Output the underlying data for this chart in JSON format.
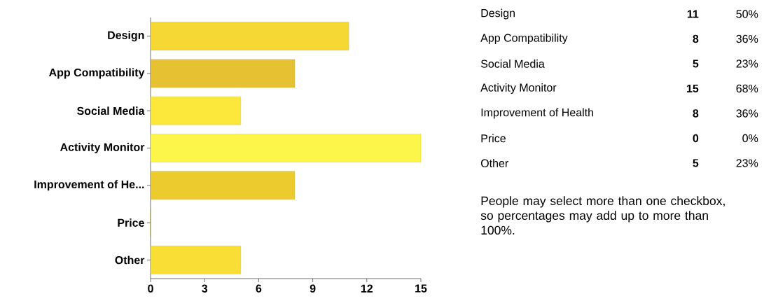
{
  "chart_data": [
    {
      "type": "bar",
      "orientation": "horizontal",
      "categories": [
        "Design",
        "App Compatibility",
        "Social Media",
        "Activity Monitor",
        "Improvement of He...",
        "Price",
        "Other"
      ],
      "values": [
        11,
        8,
        5,
        15,
        8,
        0,
        5
      ],
      "colors": [
        "#f5d833",
        "#e6c233",
        "#fbe83a",
        "#fdf64a",
        "#ebcb2e",
        "#f5d833",
        "#f8de35"
      ],
      "xlim": [
        0,
        15
      ],
      "xticks": [
        0,
        3,
        6,
        9,
        12,
        15
      ]
    },
    {
      "type": "other",
      "data_labels": true,
      "categories": [
        "Design",
        "App Compatibility",
        "Social Media",
        "Activity Monitor",
        "Improvement of Health",
        "Price",
        "Other"
      ],
      "series": [
        {
          "values": [
            11,
            8,
            5,
            15,
            8,
            0,
            5
          ]
        },
        {
          "values": [
            50,
            36,
            23,
            68,
            36,
            0,
            23
          ],
          "value_labels": [
            "50%",
            "36%",
            "23%",
            "68%",
            "36%",
            "0%",
            "23%"
          ]
        }
      ],
      "annotations": [
        "People may select more than one checkbox, so percentages may add up to more than 100%."
      ]
    }
  ]
}
